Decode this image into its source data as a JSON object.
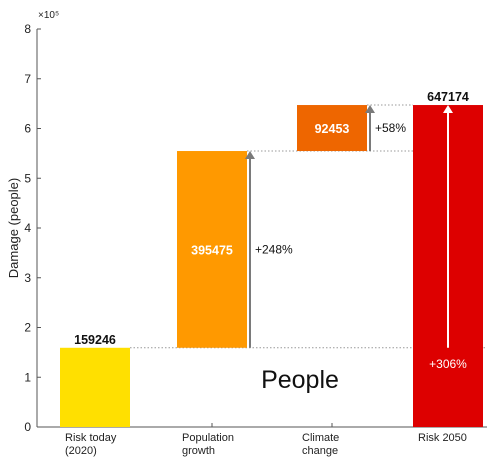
{
  "chart_data": {
    "type": "bar",
    "subtype": "waterfall",
    "ylabel": "Damage (people)",
    "y_exponent_label": "×10⁵",
    "ylim": [
      0,
      8
    ],
    "y_ticks": [
      "0",
      "1",
      "2",
      "3",
      "4",
      "5",
      "6",
      "7",
      "8"
    ],
    "categories": [
      "Risk today\n(2020)",
      "Population\ngrowth",
      "Climate\nchange",
      "Risk 2050"
    ],
    "bars": [
      {
        "category": "Risk today (2020)",
        "base": 0,
        "value": 159246,
        "label": "159246",
        "color": "#FFE000",
        "label_color": "#111111",
        "label_position": "above"
      },
      {
        "category": "Population growth",
        "base": 159246,
        "value": 395475,
        "label": "395475",
        "color": "#FF9900",
        "label_color": "#ffffff",
        "label_position": "inside"
      },
      {
        "category": "Climate change",
        "base": 554721,
        "value": 92453,
        "label": "92453",
        "color": "#EE6600",
        "label_color": "#ffffff",
        "label_position": "inside"
      },
      {
        "category": "Risk 2050",
        "base": 0,
        "value": 647174,
        "label": "647174",
        "color": "#DD0000",
        "label_color": "#111111",
        "label_position": "above"
      }
    ],
    "annotations": [
      {
        "label": "+248%",
        "from": 159246,
        "to": 554721,
        "category_index": 1,
        "color": "#111111"
      },
      {
        "label": "+58%",
        "from": 554721,
        "to": 647174,
        "category_index": 2,
        "color": "#111111"
      },
      {
        "label": "+306%",
        "from": 159246,
        "to": 647174,
        "category_index": 3,
        "color": "#ffffff"
      }
    ],
    "overlay_text": "People",
    "grid": false,
    "legend": "none"
  }
}
